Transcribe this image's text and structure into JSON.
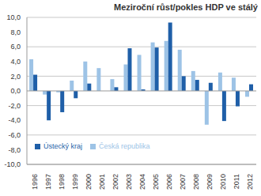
{
  "chart_data": {
    "type": "bar",
    "title": "Meziroční růst/pokles HDP ve stálý",
    "categories": [
      "1996",
      "1997",
      "1998",
      "1999",
      "2000",
      "2001",
      "2002",
      "2003",
      "2004",
      "2005",
      "2006",
      "2007",
      "2008",
      "2009",
      "2010",
      "2011",
      "2012"
    ],
    "series": [
      {
        "name": "Česká republika",
        "color": "#9dc3e6",
        "values": [
          4.3,
          -0.5,
          -0.2,
          1.4,
          4.0,
          3.1,
          1.6,
          3.6,
          4.9,
          6.6,
          6.8,
          5.6,
          2.7,
          -4.6,
          2.5,
          1.8,
          -0.8
        ]
      },
      {
        "name": "Ústecký kraj",
        "color": "#1f5fa8",
        "values": [
          2.2,
          -4.0,
          -2.9,
          -1.0,
          1.0,
          0.0,
          0.5,
          5.8,
          0.2,
          5.9,
          9.3,
          2.0,
          1.5,
          1.1,
          -4.1,
          -2.1,
          0.9
        ]
      }
    ],
    "ylim": [
      -10,
      10
    ],
    "yticks": [
      {
        "value": -10,
        "label": "-10,0"
      },
      {
        "value": -8,
        "label": "-8,0"
      },
      {
        "value": -6,
        "label": "-6,0"
      },
      {
        "value": -4,
        "label": "-4,0"
      },
      {
        "value": -2,
        "label": "-2,0"
      },
      {
        "value": 0,
        "label": "0,0"
      },
      {
        "value": 2,
        "label": "2,0"
      },
      {
        "value": 4,
        "label": "4,0"
      },
      {
        "value": 6,
        "label": "6,0"
      },
      {
        "value": 8,
        "label": "8,0"
      },
      {
        "value": 10,
        "label": "10,0"
      }
    ],
    "grid": true,
    "legend": "lower left"
  }
}
